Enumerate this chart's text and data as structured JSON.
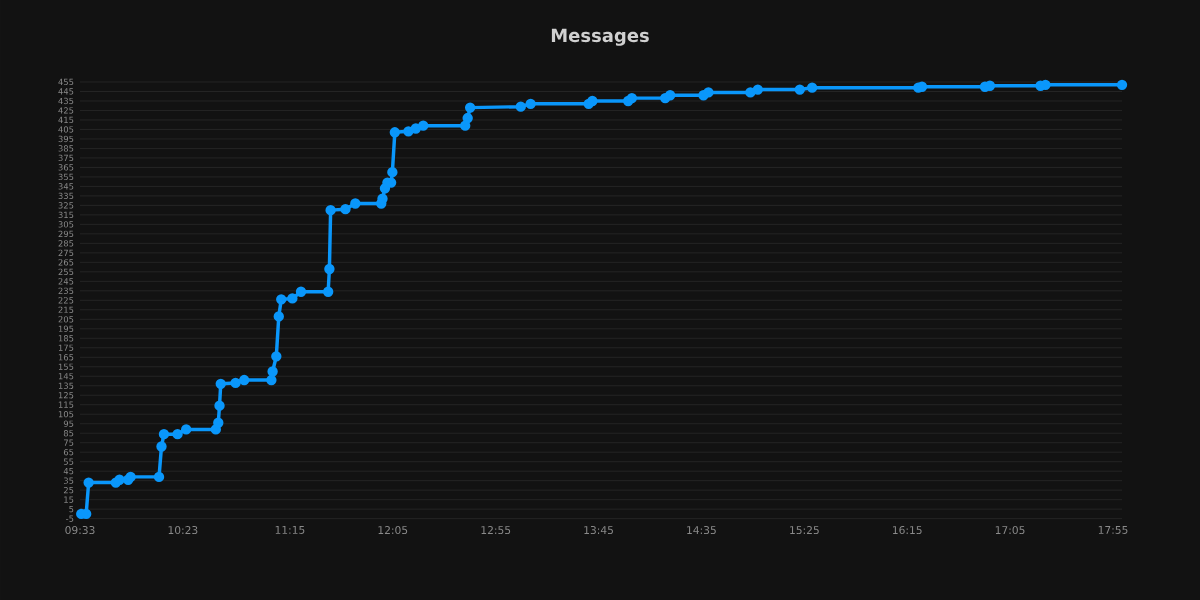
{
  "chart_data": {
    "type": "line",
    "title": "Messages",
    "color": "#0a97fb",
    "marker": "circle",
    "grid": "y",
    "x": [
      9.56,
      9.6,
      9.62,
      9.84,
      9.87,
      9.94,
      9.96,
      10.19,
      10.21,
      10.23,
      10.34,
      10.41,
      10.65,
      10.67,
      10.68,
      10.69,
      10.81,
      10.88,
      11.1,
      11.11,
      11.14,
      11.16,
      11.18,
      11.27,
      11.34,
      11.56,
      11.57,
      11.58,
      11.7,
      11.78,
      11.99,
      12.0,
      12.02,
      12.04,
      12.07,
      12.08,
      12.1,
      12.21,
      12.27,
      12.33,
      12.67,
      12.69,
      12.71,
      13.12,
      13.2,
      13.67,
      13.7,
      13.99,
      14.02,
      14.29,
      14.33,
      14.6,
      14.64,
      14.98,
      15.04,
      15.38,
      15.48,
      16.34,
      16.37,
      16.88,
      16.92,
      17.33,
      17.37,
      17.99
    ],
    "values": [
      0,
      0,
      33,
      33,
      36,
      36,
      39,
      39,
      71,
      84,
      84,
      89,
      89,
      96,
      114,
      137,
      138,
      141,
      141,
      150,
      166,
      208,
      226,
      227,
      234,
      234,
      258,
      320,
      321,
      327,
      327,
      332,
      343,
      349,
      349,
      360,
      402,
      403,
      406,
      409,
      409,
      417,
      428,
      429,
      432,
      432,
      435,
      435,
      438,
      438,
      441,
      441,
      444,
      444,
      447,
      447,
      449,
      449,
      450,
      450,
      451,
      451,
      452,
      452
    ],
    "xlim": [
      9.55,
      17.99
    ],
    "ylim": [
      -5,
      455
    ],
    "xticks": [
      {
        "value": 9.55,
        "label": "09:33"
      },
      {
        "value": 10.383,
        "label": "10:23"
      },
      {
        "value": 11.25,
        "label": "11:15"
      },
      {
        "value": 12.083,
        "label": "12:05"
      },
      {
        "value": 12.917,
        "label": "12:55"
      },
      {
        "value": 13.75,
        "label": "13:45"
      },
      {
        "value": 14.583,
        "label": "14:35"
      },
      {
        "value": 15.417,
        "label": "15:25"
      },
      {
        "value": 16.25,
        "label": "16:15"
      },
      {
        "value": 17.083,
        "label": "17:05"
      },
      {
        "value": 17.917,
        "label": "17:55"
      }
    ],
    "yticks": [
      -5,
      5,
      15,
      25,
      35,
      45,
      55,
      65,
      75,
      85,
      95,
      105,
      115,
      125,
      135,
      145,
      155,
      165,
      175,
      185,
      195,
      205,
      215,
      225,
      235,
      245,
      255,
      265,
      275,
      285,
      295,
      305,
      315,
      325,
      335,
      345,
      355,
      365,
      375,
      385,
      395,
      405,
      415,
      425,
      435,
      445,
      455
    ]
  }
}
